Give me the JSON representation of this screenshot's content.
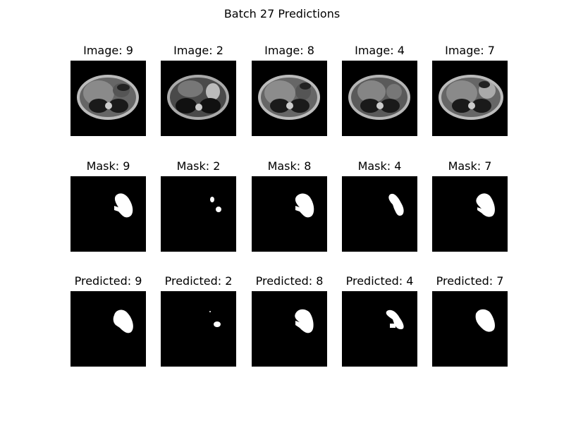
{
  "figure": {
    "title": "Batch 27 Predictions",
    "rows": [
      {
        "kind": "image",
        "panels": [
          {
            "label": "Image: 9"
          },
          {
            "label": "Image: 2"
          },
          {
            "label": "Image: 8"
          },
          {
            "label": "Image: 4"
          },
          {
            "label": "Image: 7"
          }
        ]
      },
      {
        "kind": "mask",
        "panels": [
          {
            "label": "Mask: 9"
          },
          {
            "label": "Mask: 2"
          },
          {
            "label": "Mask: 8"
          },
          {
            "label": "Mask: 4"
          },
          {
            "label": "Mask: 7"
          }
        ]
      },
      {
        "kind": "predicted",
        "panels": [
          {
            "label": "Predicted: 9"
          },
          {
            "label": "Predicted: 2"
          },
          {
            "label": "Predicted: 8"
          },
          {
            "label": "Predicted: 4"
          },
          {
            "label": "Predicted: 7"
          }
        ]
      }
    ]
  }
}
